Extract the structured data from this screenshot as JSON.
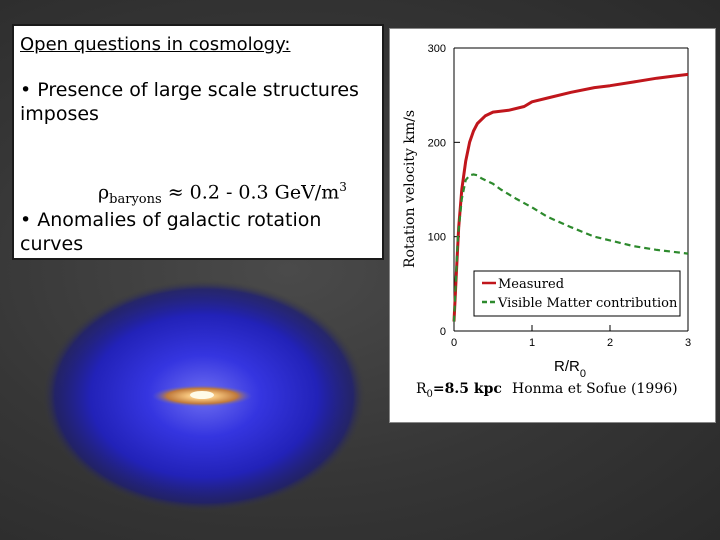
{
  "slide": {
    "title": "Open questions in cosmology:",
    "bullet1": "• Presence of large scale structures imposes",
    "formula": {
      "rho": "ρ",
      "rho_sub": "baryons",
      "rhs": " ≈ 0.2 - 0.3 GeV/m",
      "rhs_sup": "3"
    },
    "bullet2": "• Anomalies of galactic rotation curves"
  },
  "colors": {
    "measured": "#c0161c",
    "visible": "#2d8a2d",
    "galaxy_halo": "#2b2bd8",
    "galaxy_core": "#f0b060"
  },
  "chart_data": {
    "type": "line",
    "ylabel": "Rotation velocity km/s",
    "xlabel": "R/R",
    "xlabel_sub": "0",
    "xlim": [
      0,
      3
    ],
    "ylim": [
      0,
      300
    ],
    "xticks": [
      0,
      1,
      2,
      3
    ],
    "yticks": [
      0,
      100,
      200,
      300
    ],
    "series": [
      {
        "name": "Measured",
        "style": "solid",
        "x": [
          0.0,
          0.03,
          0.06,
          0.1,
          0.15,
          0.2,
          0.25,
          0.3,
          0.4,
          0.5,
          0.7,
          0.9,
          1.0,
          1.2,
          1.5,
          1.8,
          2.0,
          2.3,
          2.6,
          2.8,
          3.0
        ],
        "y": [
          10,
          60,
          110,
          150,
          180,
          200,
          212,
          220,
          228,
          232,
          234,
          238,
          243,
          247,
          253,
          258,
          260,
          264,
          268,
          270,
          272
        ]
      },
      {
        "name": "Visible Matter contribution",
        "style": "dashed",
        "x": [
          0.0,
          0.05,
          0.1,
          0.15,
          0.2,
          0.25,
          0.3,
          0.35,
          0.4,
          0.5,
          0.6,
          0.8,
          1.0,
          1.2,
          1.5,
          1.8,
          2.0,
          2.3,
          2.6,
          3.0
        ],
        "y": [
          10,
          100,
          140,
          160,
          165,
          166,
          165,
          162,
          160,
          156,
          150,
          140,
          131,
          121,
          110,
          100,
          96,
          90,
          86,
          82
        ]
      }
    ],
    "legend_position": "lower-right",
    "footnote_left": "R",
    "footnote_left_sub": "0",
    "footnote_left_rest": "=8.5 kpc",
    "footnote_right": "Honma et Sofue (1996)"
  }
}
